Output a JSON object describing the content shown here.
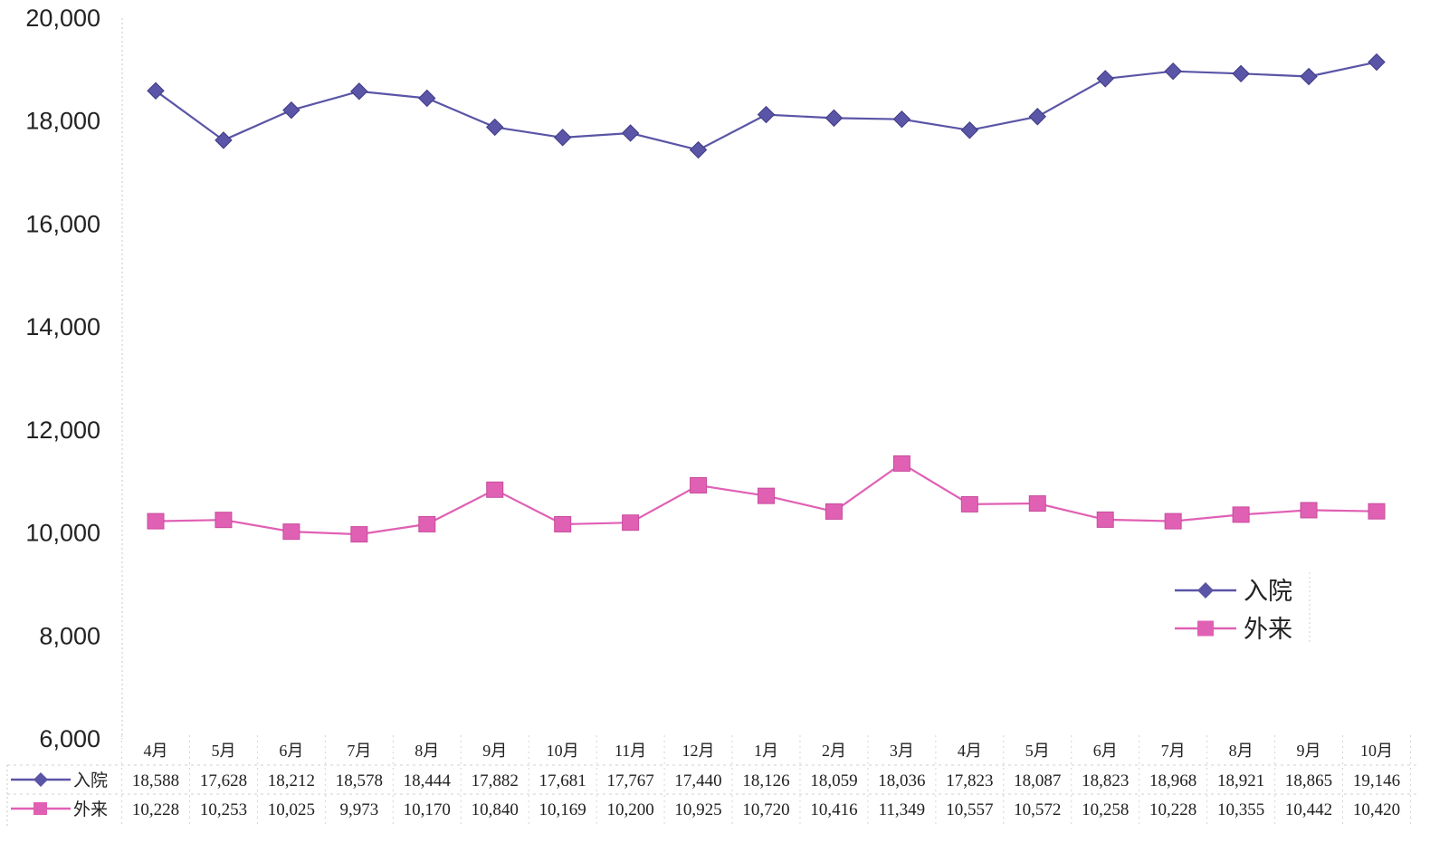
{
  "chart_data": {
    "type": "line",
    "title": "",
    "xlabel": "",
    "ylabel": "",
    "ylim": [
      6000,
      20000
    ],
    "yticks": [
      "20,000",
      "18,000",
      "16,000",
      "14,000",
      "12,000",
      "10,000",
      "8,000",
      "6,000"
    ],
    "categories": [
      "4月",
      "5月",
      "6月",
      "7月",
      "8月",
      "9月",
      "10月",
      "11月",
      "12月",
      "1月",
      "2月",
      "3月",
      "4月",
      "5月",
      "6月",
      "7月",
      "8月",
      "9月",
      "10月"
    ],
    "series": [
      {
        "name": "入院",
        "color": "#5a55a6",
        "marker": "diamond",
        "values": [
          18588,
          17628,
          18212,
          18578,
          18444,
          17882,
          17681,
          17767,
          17440,
          18126,
          18059,
          18036,
          17823,
          18087,
          18823,
          18968,
          18921,
          18865,
          19146
        ],
        "labels": [
          "18,588",
          "17,628",
          "18,212",
          "18,578",
          "18,444",
          "17,882",
          "17,681",
          "17,767",
          "17,440",
          "18,126",
          "18,059",
          "18,036",
          "17,823",
          "18,087",
          "18,823",
          "18,968",
          "18,921",
          "18,865",
          "19,146"
        ]
      },
      {
        "name": "外来",
        "color": "#e060b4",
        "marker": "square",
        "values": [
          10228,
          10253,
          10025,
          9973,
          10170,
          10840,
          10169,
          10200,
          10925,
          10720,
          10416,
          11349,
          10557,
          10572,
          10258,
          10228,
          10355,
          10442,
          10420
        ],
        "labels": [
          "10,228",
          "10,253",
          "10,025",
          "9,973",
          "10,170",
          "10,840",
          "10,169",
          "10,200",
          "10,925",
          "10,720",
          "10,416",
          "11,349",
          "10,557",
          "10,572",
          "10,258",
          "10,228",
          "10,355",
          "10,442",
          "10,420"
        ]
      }
    ],
    "legend": "right",
    "grid": false,
    "data_table": true
  }
}
